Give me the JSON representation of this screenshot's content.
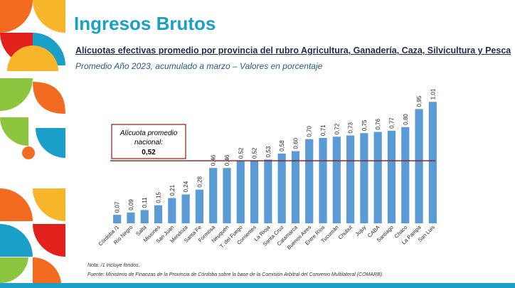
{
  "slide": {
    "title": "Ingresos Brutos",
    "subtitle": "Alícuotas efectivas promedio por provincia del rubro Agricultura, Ganadería, Caza, Silvicultura y Pesca",
    "subtitle2": "Promedio Año 2023, acumulado a marzo – Valores en porcentaje",
    "note": "Nota: /1 Incluye fondos.",
    "source": "Fuente: Ministerio de Finanzas de la Provincia de Córdoba sobre la base de la Comisión Arbitral del Convenio Multilateral (COMARB)."
  },
  "colors": {
    "bar": "#5b9bd5",
    "reference_line": "#8b1a1a",
    "title": "#1aa0c8",
    "deco_orange": "#f26b21",
    "deco_yellow": "#f7b52c",
    "deco_green": "#8cc63f",
    "deco_blue": "#1aa0c8",
    "deco_red": "#e2211c"
  },
  "chart_data": {
    "type": "bar",
    "categories": [
      "Córdoba /1",
      "Río Negro",
      "Salta",
      "Misiones",
      "San Juan",
      "Mendoza",
      "Santa Fe",
      "Formosa",
      "Neuquén",
      "T. del Fuego",
      "Corrientes",
      "La Rioja",
      "Santa Cruz",
      "Catamarca",
      "Buenos Aires",
      "Entre Ríos",
      "Tucumán",
      "Chubut",
      "Jujuy",
      "CABA",
      "Santiago",
      "Chaco",
      "La Pampa",
      "San Luis"
    ],
    "values": [
      0.07,
      0.09,
      0.11,
      0.15,
      0.21,
      0.24,
      0.28,
      0.46,
      0.46,
      0.52,
      0.52,
      0.53,
      0.58,
      0.6,
      0.7,
      0.71,
      0.72,
      0.73,
      0.75,
      0.76,
      0.77,
      0.8,
      0.95,
      1.01
    ],
    "value_labels": [
      "0,07",
      "0,09",
      "0,11",
      "0,15",
      "0,21",
      "0,24",
      "0,28",
      "0,46",
      "0,46",
      "0,52",
      "0,52",
      "0,53",
      "0,58",
      "0,60",
      "0,70",
      "0,71",
      "0,72",
      "0,73",
      "0,75",
      "0,76",
      "0,77",
      "0,80",
      "0,95",
      "1,01"
    ],
    "reference": {
      "label_line1": "Alícuota promedio",
      "label_line2": "nacional:",
      "value_label": "0,52",
      "value": 0.52
    },
    "ylim": [
      0,
      1.1
    ],
    "grid": false,
    "legend": "none"
  }
}
